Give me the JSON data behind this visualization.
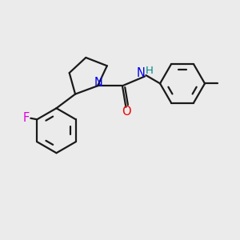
{
  "bg_color": "#ebebeb",
  "bond_color": "#1a1a1a",
  "bond_width": 1.6,
  "atom_colors": {
    "N": "#0000ee",
    "O": "#ee0000",
    "F": "#dd00dd",
    "H": "#008888",
    "C": "#1a1a1a"
  },
  "font_size": 10.5,
  "font_size_small": 9.5
}
